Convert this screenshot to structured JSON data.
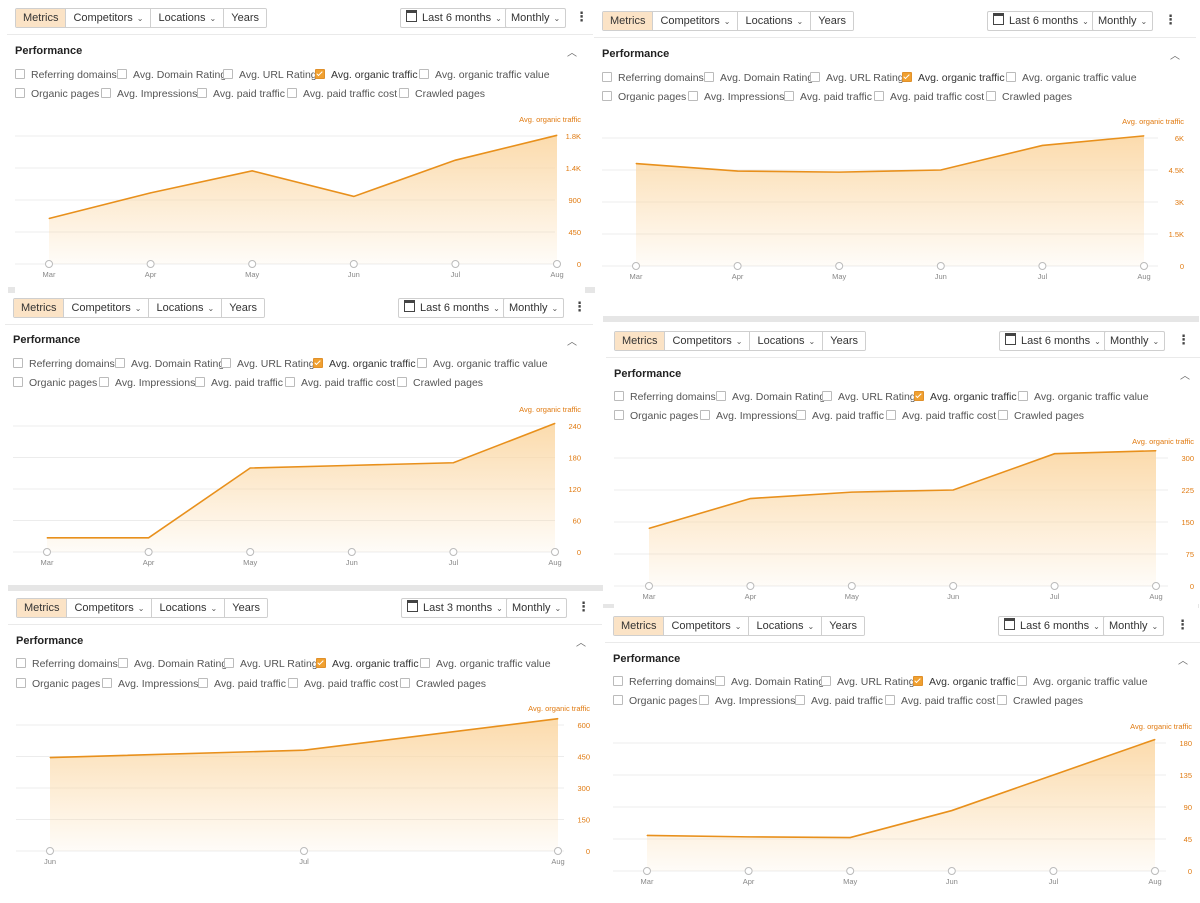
{
  "labels": {
    "segments": [
      "Metrics",
      "Competitors",
      "Locations",
      "Years"
    ],
    "granularity": "Monthly",
    "performance": "Performance",
    "row1": [
      "Referring domains",
      "Avg. Domain Rating",
      "Avg. URL Rating",
      "Avg. organic traffic",
      "Avg. organic traffic value"
    ],
    "row2": [
      "Organic pages",
      "Avg. Impressions",
      "Avg. paid traffic",
      "Avg. paid traffic cost",
      "Crawled pages"
    ],
    "series_name": "Avg. organic traffic",
    "months6": [
      "Mar",
      "Apr",
      "May",
      "Jun",
      "Jul",
      "Aug"
    ],
    "months3": [
      "Jun",
      "Jul",
      "Aug"
    ]
  },
  "colors": {
    "line": "#e8901c",
    "fill": "#fbd9a8",
    "accent": "#f0a030",
    "marker": "#8fd08f"
  },
  "panels": [
    {
      "id": "p1",
      "date_range": "Last 6 months",
      "chart_data": {
        "type": "area",
        "x": [
          "Mar",
          "Apr",
          "May",
          "Jun",
          "Jul",
          "Aug"
        ],
        "series": [
          {
            "name": "Avg. organic traffic",
            "values": [
              640,
              1000,
              1310,
              950,
              1460,
              1810
            ]
          }
        ],
        "yticks": [
          "1.8K",
          "1.4K",
          "900",
          "450",
          "0"
        ],
        "ylim": [
          0,
          1800
        ]
      }
    },
    {
      "id": "p2",
      "date_range": "Last 6 months",
      "chart_data": {
        "type": "area",
        "x": [
          "Mar",
          "Apr",
          "May",
          "Jun",
          "Jul",
          "Aug"
        ],
        "series": [
          {
            "name": "Avg. organic traffic",
            "values": [
              27,
              27,
              160,
              165,
              170,
              245
            ]
          }
        ],
        "yticks": [
          "240",
          "180",
          "120",
          "60",
          "0"
        ],
        "ylim": [
          0,
          240
        ]
      }
    },
    {
      "id": "p3",
      "date_range": "Last 3 months",
      "chart_data": {
        "type": "area",
        "x": [
          "Jun",
          "Jul",
          "Aug"
        ],
        "series": [
          {
            "name": "Avg. organic traffic",
            "values": [
              445,
              480,
              630
            ]
          }
        ],
        "yticks": [
          "600",
          "450",
          "300",
          "150",
          "0"
        ],
        "ylim": [
          0,
          600
        ]
      }
    },
    {
      "id": "p4",
      "date_range": "Last 6 months",
      "chart_data": {
        "type": "area",
        "x": [
          "Mar",
          "Apr",
          "May",
          "Jun",
          "Jul",
          "Aug"
        ],
        "series": [
          {
            "name": "Avg. organic traffic",
            "values": [
              4800,
              4450,
              4400,
              4500,
              5650,
              6100
            ]
          }
        ],
        "yticks": [
          "6K",
          "4.5K",
          "3K",
          "1.5K",
          "0"
        ],
        "ylim": [
          0,
          6000
        ]
      }
    },
    {
      "id": "p5",
      "date_range": "Last 6 months",
      "chart_data": {
        "type": "area",
        "x": [
          "Mar",
          "Apr",
          "May",
          "Jun",
          "Jul",
          "Aug"
        ],
        "series": [
          {
            "name": "Avg. organic traffic",
            "values": [
              135,
              205,
              220,
              225,
              310,
              317
            ]
          }
        ],
        "yticks": [
          "300",
          "225",
          "150",
          "75",
          "0"
        ],
        "ylim": [
          0,
          300
        ]
      }
    },
    {
      "id": "p6",
      "date_range": "Last 6 months",
      "chart_data": {
        "type": "area",
        "x": [
          "Mar",
          "Apr",
          "May",
          "Jun",
          "Jul",
          "Aug"
        ],
        "series": [
          {
            "name": "Avg. organic traffic",
            "values": [
              50,
              48,
              47,
              85,
              135,
              185
            ]
          }
        ],
        "yticks": [
          "180",
          "135",
          "90",
          "45",
          "0"
        ],
        "ylim": [
          0,
          180
        ]
      }
    }
  ]
}
